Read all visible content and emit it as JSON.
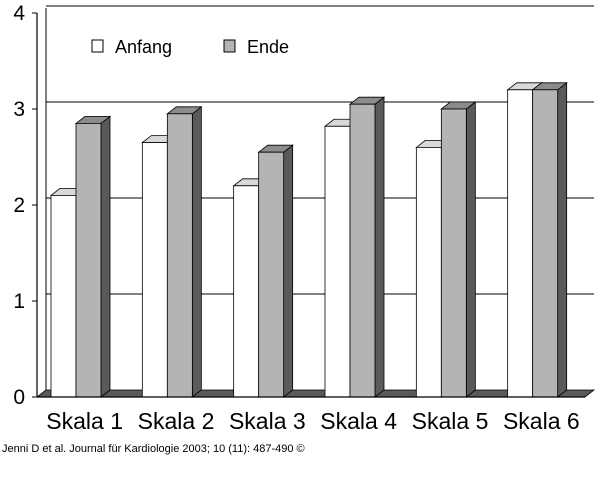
{
  "chart_data": {
    "type": "bar",
    "categories": [
      "Skala 1",
      "Skala 2",
      "Skala 3",
      "Skala 4",
      "Skala 5",
      "Skala 6"
    ],
    "series": [
      {
        "name": "Anfang",
        "values": [
          2.1,
          2.65,
          2.2,
          2.82,
          2.6,
          3.2
        ]
      },
      {
        "name": "Ende",
        "values": [
          2.85,
          2.95,
          2.55,
          3.05,
          3.0,
          3.2
        ]
      }
    ],
    "ylim": [
      0,
      4
    ],
    "yticks": [
      "0",
      "1",
      "2",
      "3",
      "4"
    ],
    "grid": true,
    "legend_position": "top-left",
    "colors": {
      "Anfang": "#ffffff",
      "Ende": "#b4b4b4",
      "side": "#5a5a5a",
      "top_anfang": "#d8d8d8",
      "top_ende": "#8c8c8c"
    }
  },
  "credit": "Jenni D et al. Journal für Kardiologie 2003; 10 (11): 487-490 ©"
}
